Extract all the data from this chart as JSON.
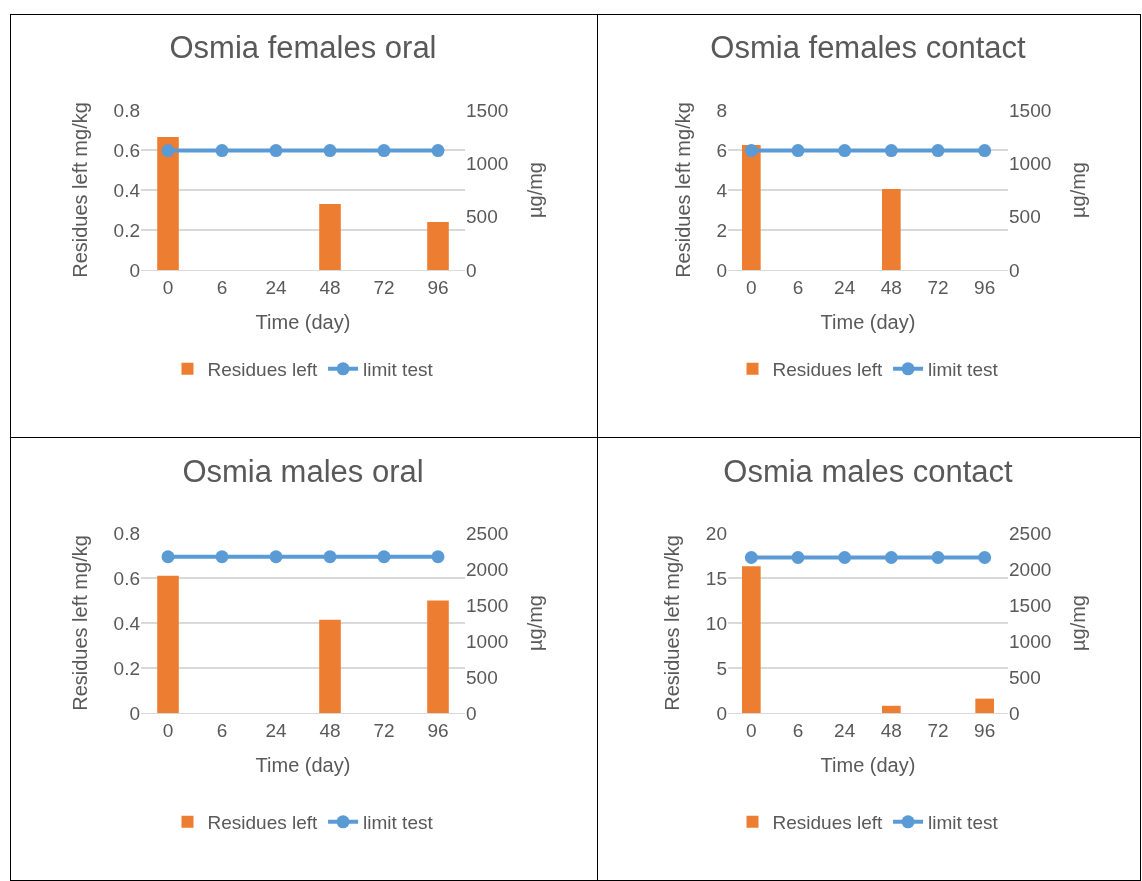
{
  "chart_data": [
    {
      "type": "bar",
      "title": "Osmia females oral",
      "xlabel": "Time (day)",
      "ylabel": "Residues left mg/kg",
      "y2label": "µg/mg",
      "categories": [
        "0",
        "6",
        "24",
        "48",
        "72",
        "96"
      ],
      "series": [
        {
          "name": "Residues left",
          "color": "#ed7d31",
          "values": [
            0.665,
            null,
            null,
            0.33,
            null,
            0.24
          ]
        },
        {
          "name": "limit test",
          "type": "line",
          "axis": "y2",
          "color": "#5b9bd5",
          "marker": "circle",
          "values": [
            1120,
            1120,
            1120,
            1120,
            1120,
            1120
          ]
        }
      ],
      "ylim": [
        0,
        0.8
      ],
      "yticks": [
        {
          "value": 0,
          "label": "0"
        },
        0.2,
        0.4,
        0.6,
        0.8
      ],
      "y2lim": [
        0,
        1500
      ],
      "y2ticks": [
        0,
        500,
        1000,
        1500
      ],
      "grid": "y",
      "legend": "bottom"
    },
    {
      "type": "bar",
      "title": "Osmia females contact",
      "xlabel": "Time (day)",
      "ylabel": "Residues left mg/kg",
      "y2label": "µg/mg",
      "categories": [
        "0",
        "6",
        "24",
        "48",
        "72",
        "96"
      ],
      "series": [
        {
          "name": "Residues left",
          "color": "#ed7d31",
          "values": [
            6.25,
            null,
            null,
            4.05,
            null,
            null
          ]
        },
        {
          "name": "limit test",
          "type": "line",
          "axis": "y2",
          "color": "#5b9bd5",
          "marker": "circle",
          "values": [
            1120,
            1120,
            1120,
            1120,
            1120,
            1120
          ]
        }
      ],
      "ylim": [
        0,
        8
      ],
      "yticks": [
        0,
        2,
        4,
        6,
        8
      ],
      "y2lim": [
        0,
        1500
      ],
      "y2ticks": [
        0,
        500,
        1000,
        1500
      ],
      "grid": "y",
      "legend": "bottom"
    },
    {
      "type": "bar",
      "title": "Osmia males oral",
      "xlabel": "Time (day)",
      "ylabel": "Residues left mg/kg",
      "y2label": "µg/mg",
      "categories": [
        "0",
        "6",
        "24",
        "48",
        "72",
        "96"
      ],
      "series": [
        {
          "name": "Residues left",
          "color": "#ed7d31",
          "values": [
            0.61,
            null,
            null,
            0.415,
            null,
            0.5
          ]
        },
        {
          "name": "limit test",
          "type": "line",
          "axis": "y2",
          "color": "#5b9bd5",
          "marker": "circle",
          "values": [
            2170,
            2170,
            2170,
            2170,
            2170,
            2170
          ]
        }
      ],
      "ylim": [
        0,
        0.8
      ],
      "yticks": [
        {
          "value": 0,
          "label": "0"
        },
        0.2,
        0.4,
        0.6,
        0.8
      ],
      "y2lim": [
        0,
        2500
      ],
      "y2ticks": [
        0,
        500,
        1000,
        1500,
        2000,
        2500
      ],
      "grid": "y",
      "legend": "bottom"
    },
    {
      "type": "bar",
      "title": "Osmia males contact",
      "xlabel": "Time (day)",
      "ylabel": "Residues left mg/kg",
      "y2label": "µg/mg",
      "categories": [
        "0",
        "6",
        "24",
        "48",
        "72",
        "96"
      ],
      "series": [
        {
          "name": "Residues left",
          "color": "#ed7d31",
          "values": [
            16.3,
            null,
            null,
            0.8,
            null,
            1.6
          ]
        },
        {
          "name": "limit test",
          "type": "line",
          "axis": "y2",
          "color": "#5b9bd5",
          "marker": "circle",
          "values": [
            2160,
            2160,
            2160,
            2160,
            2160,
            2160
          ]
        }
      ],
      "ylim": [
        0,
        20
      ],
      "yticks": [
        0,
        5,
        10,
        15,
        20
      ],
      "y2lim": [
        0,
        2500
      ],
      "y2ticks": [
        0,
        500,
        1000,
        1500,
        2000,
        2500
      ],
      "grid": "y",
      "legend": "bottom"
    }
  ]
}
